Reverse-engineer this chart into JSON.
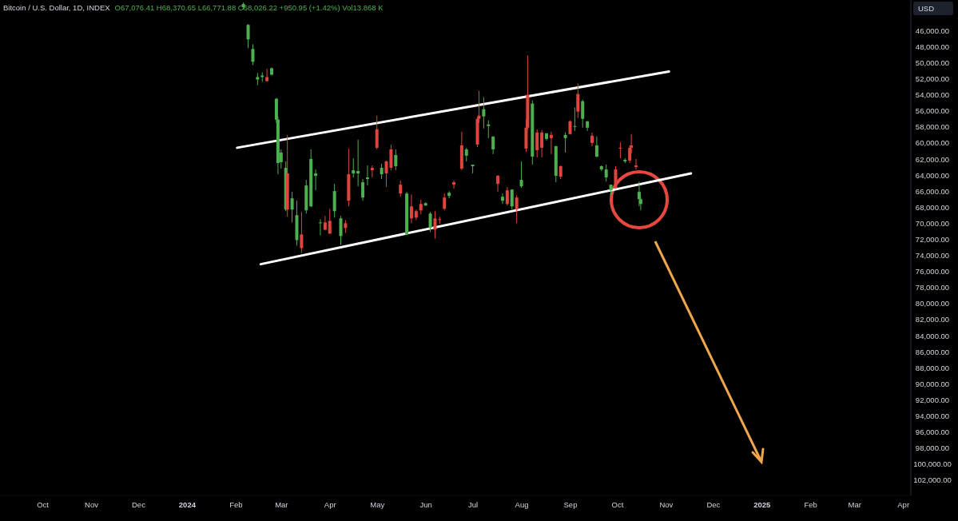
{
  "chart_data": {
    "type": "candlestick",
    "title": "Bitcoin / U.S. Dollar, 1D, INDEX",
    "subtitle": "O67,076.41 H68,370.65 L66,771.88 C68,026.22 +950.95 (+1.42%) Vol13.868 K",
    "ylabel": "USD",
    "x": [
      "2024-02-06",
      "2024-02-09",
      "2024-02-12",
      "2024-02-15",
      "2024-02-18",
      "2024-02-21",
      "2024-02-24",
      "2024-02-27",
      "2024-02-28",
      "2024-03-01",
      "2024-03-04",
      "2024-03-05",
      "2024-03-08",
      "2024-03-11",
      "2024-03-14",
      "2024-03-17",
      "2024-03-20",
      "2024-03-23",
      "2024-03-26",
      "2024-03-29",
      "2024-04-01",
      "2024-04-04",
      "2024-04-08",
      "2024-04-11",
      "2024-04-13",
      "2024-04-16",
      "2024-04-19",
      "2024-04-22",
      "2024-04-25",
      "2024-04-28",
      "2024-05-01",
      "2024-05-04",
      "2024-05-07",
      "2024-05-10",
      "2024-05-13",
      "2024-05-16",
      "2024-05-20",
      "2024-05-23",
      "2024-05-26",
      "2024-05-29",
      "2024-06-01",
      "2024-06-04",
      "2024-06-07",
      "2024-06-10",
      "2024-06-13",
      "2024-06-16",
      "2024-06-19",
      "2024-06-24",
      "2024-06-27",
      "2024-07-01",
      "2024-07-04",
      "2024-07-05",
      "2024-07-08",
      "2024-07-11",
      "2024-07-14",
      "2024-07-17",
      "2024-07-20",
      "2024-07-23",
      "2024-07-26",
      "2024-07-29",
      "2024-08-01",
      "2024-08-04",
      "2024-08-05",
      "2024-08-08",
      "2024-08-11",
      "2024-08-14",
      "2024-08-17",
      "2024-08-20",
      "2024-08-23",
      "2024-08-26",
      "2024-08-29",
      "2024-09-01",
      "2024-09-04",
      "2024-09-06",
      "2024-09-09",
      "2024-09-12",
      "2024-09-15",
      "2024-09-18",
      "2024-09-21",
      "2024-09-24",
      "2024-09-27",
      "2024-09-30",
      "2024-10-03",
      "2024-10-06",
      "2024-10-09",
      "2024-10-10",
      "2024-10-13",
      "2024-10-15",
      "2024-10-16"
    ],
    "ohlc": [
      [
        42700,
        43400,
        42500,
        43100
      ],
      [
        45300,
        48200,
        45200,
        47100
      ],
      [
        48300,
        50300,
        47700,
        49900
      ],
      [
        51800,
        52800,
        51300,
        52100
      ],
      [
        51600,
        52400,
        51200,
        51800
      ],
      [
        52300,
        52400,
        50800,
        51800
      ],
      [
        50700,
        51600,
        50600,
        51500
      ],
      [
        54500,
        57500,
        54400,
        57100
      ],
      [
        57100,
        63900,
        56700,
        62500
      ],
      [
        61200,
        63200,
        60800,
        62400
      ],
      [
        63100,
        68500,
        62300,
        68300
      ],
      [
        68300,
        69200,
        59000,
        63800
      ],
      [
        66900,
        69900,
        66100,
        68300
      ],
      [
        69000,
        72800,
        67200,
        72100
      ],
      [
        73100,
        73700,
        68600,
        71400
      ],
      [
        65300,
        68800,
        64600,
        68400
      ],
      [
        62000,
        68000,
        60800,
        67900
      ],
      [
        63800,
        65900,
        63300,
        64100
      ],
      [
        69900,
        71500,
        69500,
        70000
      ],
      [
        70800,
        70900,
        69100,
        69900
      ],
      [
        71300,
        71300,
        68200,
        69700
      ],
      [
        66000,
        69300,
        65100,
        68500
      ],
      [
        69400,
        72700,
        69100,
        71600
      ],
      [
        70600,
        71200,
        69600,
        70000
      ],
      [
        67200,
        67900,
        60700,
        63900
      ],
      [
        63400,
        64300,
        61900,
        63800
      ],
      [
        63500,
        65400,
        59600,
        63800
      ],
      [
        64900,
        67200,
        64500,
        66800
      ],
      [
        64300,
        65300,
        62800,
        64500
      ],
      [
        63400,
        64300,
        62800,
        63100
      ],
      [
        60600,
        60800,
        56600,
        58300
      ],
      [
        63100,
        64500,
        62600,
        63900
      ],
      [
        63800,
        65500,
        62200,
        62300
      ],
      [
        63100,
        63400,
        60200,
        60800
      ],
      [
        61500,
        63400,
        60800,
        62900
      ],
      [
        66300,
        66700,
        64700,
        65200
      ],
      [
        66300,
        71500,
        66100,
        71400
      ],
      [
        69400,
        70000,
        66400,
        67900
      ],
      [
        69300,
        69600,
        68300,
        68500
      ],
      [
        68400,
        68900,
        67100,
        67600
      ],
      [
        67500,
        67800,
        67400,
        67800
      ],
      [
        68800,
        71100,
        68600,
        70600
      ],
      [
        70800,
        71900,
        68500,
        69400
      ],
      [
        69600,
        70100,
        69200,
        69500
      ],
      [
        68200,
        68400,
        66300,
        66800
      ],
      [
        66200,
        66900,
        66000,
        66600
      ],
      [
        65200,
        65700,
        64700,
        64900
      ],
      [
        63200,
        63400,
        58600,
        60300
      ],
      [
        60800,
        62300,
        60600,
        61600
      ],
      [
        62700,
        63800,
        62700,
        62900
      ],
      [
        60200,
        60500,
        56800,
        57000
      ],
      [
        57000,
        57500,
        53500,
        56600
      ],
      [
        55800,
        58200,
        54300,
        56700
      ],
      [
        57700,
        59400,
        57200,
        57900
      ],
      [
        59200,
        61400,
        59200,
        60800
      ],
      [
        65100,
        66100,
        64000,
        64100
      ],
      [
        66700,
        67600,
        66300,
        67200
      ],
      [
        67600,
        67800,
        65500,
        65900
      ],
      [
        65800,
        68300,
        65800,
        67900
      ],
      [
        68300,
        70000,
        66500,
        66800
      ],
      [
        64600,
        65600,
        62300,
        65400
      ],
      [
        60700,
        61100,
        57100,
        58100
      ],
      [
        58100,
        58300,
        49100,
        54000
      ],
      [
        55100,
        62700,
        54700,
        61700
      ],
      [
        60900,
        61800,
        58300,
        58700
      ],
      [
        60600,
        61800,
        58400,
        58700
      ],
      [
        58800,
        59700,
        58800,
        59500
      ],
      [
        59400,
        61400,
        58600,
        59000
      ],
      [
        60400,
        64900,
        60400,
        64100
      ],
      [
        64200,
        64500,
        62800,
        62900
      ],
      [
        59000,
        61200,
        58700,
        59400
      ],
      [
        58900,
        58900,
        57200,
        57300
      ],
      [
        57900,
        58500,
        55600,
        57900
      ],
      [
        56100,
        56900,
        52600,
        53900
      ],
      [
        54800,
        58100,
        54600,
        57000
      ],
      [
        57300,
        58500,
        57300,
        58100
      ],
      [
        60000,
        60400,
        58700,
        59100
      ],
      [
        60300,
        61800,
        59200,
        61700
      ],
      [
        62900,
        63500,
        62800,
        63300
      ],
      [
        63300,
        64800,
        62700,
        64300
      ],
      [
        65200,
        66500,
        65200,
        65900
      ],
      [
        65600,
        65700,
        62900,
        63300
      ],
      [
        60700,
        61900,
        59900,
        60600
      ],
      [
        62100,
        62500,
        61900,
        62300
      ],
      [
        62200,
        62500,
        60300,
        60600
      ],
      [
        60600,
        61300,
        58900,
        60300
      ],
      [
        63000,
        63300,
        62000,
        62800
      ],
      [
        66100,
        67900,
        64800,
        67000
      ],
      [
        67000,
        68400,
        66800,
        67600
      ]
    ],
    "series": [
      {
        "type": "line",
        "color": "#ffffff",
        "x": [
          "2024-02-02",
          "2024-11-03"
        ],
        "values": [
          60600,
          51100
        ]
      },
      {
        "type": "line",
        "color": "#ffffff",
        "x": [
          "2024-02-17",
          "2024-11-17"
        ],
        "values": [
          75100,
          63800
        ]
      }
    ],
    "xlim": [
      "2023-09-04",
      "2025-04-06"
    ],
    "xticks": [
      {
        "value": "2023-10-01",
        "label": "Oct"
      },
      {
        "value": "2023-11-01",
        "label": "Nov"
      },
      {
        "value": "2023-12-01",
        "label": "Dec"
      },
      {
        "value": "2024-01-01",
        "label": "2024"
      },
      {
        "value": "2024-02-01",
        "label": "Feb"
      },
      {
        "value": "2024-03-01",
        "label": "Mar"
      },
      {
        "value": "2024-04-01",
        "label": "Apr"
      },
      {
        "value": "2024-05-01",
        "label": "May"
      },
      {
        "value": "2024-06-01",
        "label": "Jun"
      },
      {
        "value": "2024-07-01",
        "label": "Jul"
      },
      {
        "value": "2024-08-01",
        "label": "Aug"
      },
      {
        "value": "2024-09-01",
        "label": "Sep"
      },
      {
        "value": "2024-10-01",
        "label": "Oct"
      },
      {
        "value": "2024-11-01",
        "label": "Nov"
      },
      {
        "value": "2024-12-01",
        "label": "Dec"
      },
      {
        "value": "2025-01-01",
        "label": "2025"
      },
      {
        "value": "2025-02-01",
        "label": "Feb"
      },
      {
        "value": "2025-03-01",
        "label": "Mar"
      },
      {
        "value": "2025-04-01",
        "label": "Apr"
      }
    ],
    "ylim": [
      103900,
      42200
    ],
    "yticks": [
      {
        "value": 46000,
        "label": "46,000.00"
      },
      {
        "value": 48000,
        "label": "48,000.00"
      },
      {
        "value": 50000,
        "label": "50,000.00"
      },
      {
        "value": 52000,
        "label": "52,000.00"
      },
      {
        "value": 54000,
        "label": "54,000.00"
      },
      {
        "value": 56000,
        "label": "56,000.00"
      },
      {
        "value": 58000,
        "label": "58,000.00"
      },
      {
        "value": 60000,
        "label": "60,000.00"
      },
      {
        "value": 62000,
        "label": "62,000.00"
      },
      {
        "value": 64000,
        "label": "64,000.00"
      },
      {
        "value": 66000,
        "label": "66,000.00"
      },
      {
        "value": 68000,
        "label": "68,000.00"
      },
      {
        "value": 70000,
        "label": "70,000.00"
      },
      {
        "value": 72000,
        "label": "72,000.00"
      },
      {
        "value": 74000,
        "label": "74,000.00"
      },
      {
        "value": 76000,
        "label": "76,000.00"
      },
      {
        "value": 78000,
        "label": "78,000.00"
      },
      {
        "value": 80000,
        "label": "80,000.00"
      },
      {
        "value": 82000,
        "label": "82,000.00"
      },
      {
        "value": 84000,
        "label": "84,000.00"
      },
      {
        "value": 86000,
        "label": "86,000.00"
      },
      {
        "value": 88000,
        "label": "88,000.00"
      },
      {
        "value": 90000,
        "label": "90,000.00"
      },
      {
        "value": 92000,
        "label": "92,000.00"
      },
      {
        "value": 94000,
        "label": "94,000.00"
      },
      {
        "value": 96000,
        "label": "96,000.00"
      },
      {
        "value": 98000,
        "label": "98,000.00"
      },
      {
        "value": 100000,
        "label": "100,000.00"
      },
      {
        "value": 102000,
        "label": "102,000.00"
      }
    ]
  }
}
